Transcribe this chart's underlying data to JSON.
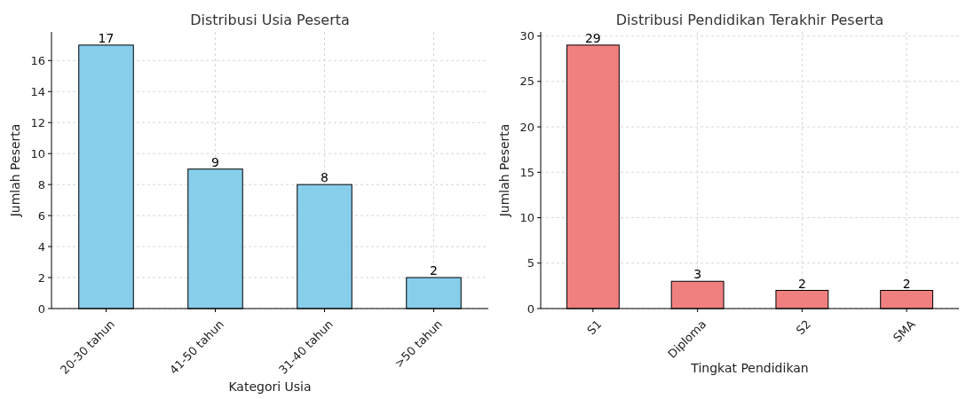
{
  "chart_data": [
    {
      "type": "bar",
      "title": "Distribusi Usia Peserta",
      "xlabel": "Kategori Usia",
      "ylabel": "Jumlah Peserta",
      "categories": [
        "20-30 tahun",
        "41-50 tahun",
        "31-40 tahun",
        ">50 tahun"
      ],
      "values": [
        17,
        9,
        8,
        2
      ],
      "color": "#87ceeb",
      "ylim": [
        0,
        17.85
      ],
      "yticks": [
        0,
        2,
        4,
        6,
        8,
        10,
        12,
        14,
        16
      ],
      "grid": true,
      "data_labels": true
    },
    {
      "type": "bar",
      "title": "Distribusi Pendidikan Terakhir Peserta",
      "xlabel": "Tingkat Pendidikan",
      "ylabel": "Jumlah Peserta",
      "categories": [
        "S1",
        "Diploma",
        "S2",
        "SMA"
      ],
      "values": [
        29,
        3,
        2,
        2
      ],
      "color": "#f08080",
      "ylim": [
        0,
        30.45
      ],
      "yticks": [
        0,
        5,
        10,
        15,
        20,
        25,
        30
      ],
      "grid": true,
      "data_labels": true
    }
  ]
}
